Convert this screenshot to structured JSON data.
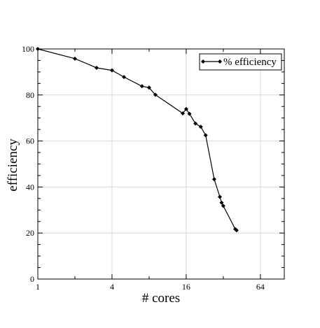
{
  "chart_data": {
    "type": "line",
    "title": "",
    "xlabel": "# cores",
    "ylabel": "efficiency",
    "xscale": "log2",
    "xlim": [
      1,
      100
    ],
    "ylim": [
      0,
      100
    ],
    "xticks": [
      1,
      4,
      16,
      64
    ],
    "xtick_labels": [
      "1",
      "4",
      "16",
      "64"
    ],
    "yticks": [
      0,
      20,
      40,
      60,
      80,
      100
    ],
    "ytick_labels": [
      "0",
      "20",
      "40",
      "60",
      "80",
      "100"
    ],
    "grid": true,
    "legend_position": "top-right",
    "series": [
      {
        "name": "% efficiency",
        "color": "#000000",
        "marker": "diamond",
        "x": [
          1,
          2,
          3,
          4,
          5,
          7,
          8,
          9,
          15,
          16,
          17,
          19,
          21,
          23,
          27,
          30,
          31,
          32,
          40,
          41
        ],
        "y": [
          100,
          95.8,
          91.8,
          90.7,
          87.8,
          83.8,
          83.2,
          80.1,
          72,
          73.9,
          71.8,
          67.6,
          66.2,
          62.5,
          43.4,
          35.7,
          33.2,
          31.8,
          21.7,
          21.2
        ]
      }
    ]
  }
}
